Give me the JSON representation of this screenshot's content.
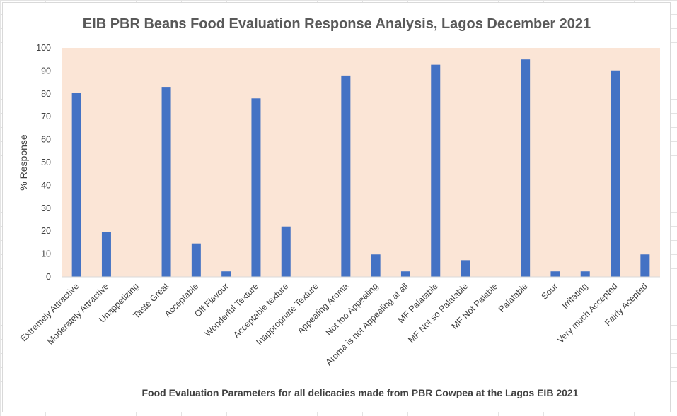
{
  "chart_data": {
    "type": "bar",
    "title": "EIB PBR Beans Food Evaluation Response Analysis, Lagos December 2021",
    "xlabel": "Food Evaluation Parameters for all delicacies made from PBR Cowpea at the Lagos EIB 2021",
    "ylabel": "% Response",
    "ylim": [
      0,
      100
    ],
    "yticks": [
      "0",
      "10",
      "20",
      "30",
      "40",
      "50",
      "60",
      "70",
      "80",
      "90",
      "100"
    ],
    "grid": false,
    "plot_background": "#fbe5d6",
    "bar_color": "#4472c4",
    "categories": [
      "Extremely Attractive",
      "Moderately Attractive",
      "Unappetizing",
      "Taste Great",
      "Acceptable",
      "Off Flavour",
      "Wonderful Texture",
      "Acceptable texture",
      "Inappropriate Texture",
      "Appealing Aroma",
      "Not too Appealing",
      "Aroma is not Appealing at all",
      "MF Palatable",
      "MF Not so Palatable",
      "MF Not Palable",
      "Palatable",
      "Sour",
      "Irritating",
      "Very much Accepted",
      "Fairly Acepted"
    ],
    "values": [
      80.5,
      19.5,
      0,
      83,
      14.6,
      2.4,
      78,
      22,
      0,
      88,
      9.8,
      2.4,
      92.7,
      7.3,
      0,
      95,
      2.4,
      2.4,
      90.2,
      9.8
    ]
  }
}
